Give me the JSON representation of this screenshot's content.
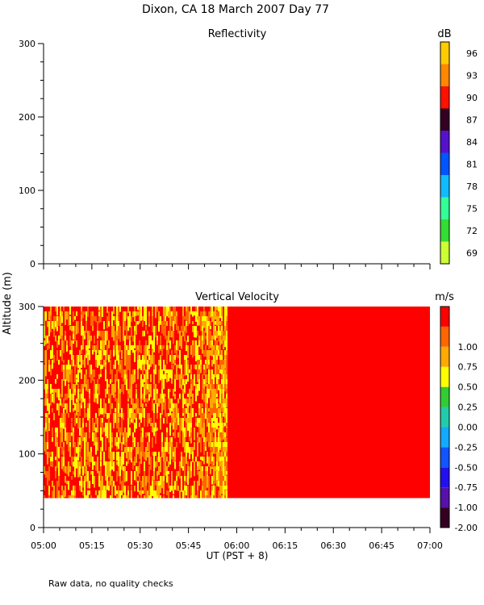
{
  "title": "Dixon, CA 18 March 2007  Day  77",
  "footnote": "Raw data, no quality checks",
  "y_axis_label": "Altitude (m)",
  "x_axis_label": "UT  (PST + 8)",
  "chart_data": [
    {
      "type": "heatmap",
      "title": "Reflectivity",
      "colorbar_unit": "dB",
      "x_ticks": [
        "05:00",
        "05:15",
        "05:30",
        "05:45",
        "06:00",
        "06:15",
        "06:30",
        "06:45",
        "07:00"
      ],
      "ylim": [
        0,
        300
      ],
      "y_ticks": [
        0,
        100,
        200,
        300
      ],
      "colorbar": [
        {
          "label": "69",
          "color": "#ccff33"
        },
        {
          "label": "72",
          "color": "#33dd33"
        },
        {
          "label": "75",
          "color": "#33ff99"
        },
        {
          "label": "78",
          "color": "#11bbff"
        },
        {
          "label": "81",
          "color": "#0055ff"
        },
        {
          "label": "84",
          "color": "#5511cc"
        },
        {
          "label": "87",
          "color": "#330022"
        },
        {
          "label": "90",
          "color": "#ff1100"
        },
        {
          "label": "93",
          "color": "#ff8800"
        },
        {
          "label": "96",
          "color": "#ffcc00"
        }
      ],
      "data_present": false
    },
    {
      "type": "heatmap",
      "title": "Vertical Velocity",
      "colorbar_unit": "m/s",
      "x_ticks": [
        "05:00",
        "05:15",
        "05:30",
        "05:45",
        "06:00",
        "06:15",
        "06:30",
        "06:45",
        "07:00"
      ],
      "ylim": [
        0,
        300
      ],
      "y_ticks": [
        0,
        100,
        200,
        300
      ],
      "colorbar": [
        {
          "label": "-2.00",
          "color": "#330022"
        },
        {
          "label": "-1.00",
          "color": "#5511aa"
        },
        {
          "label": "-0.75",
          "color": "#2211ee"
        },
        {
          "label": "-0.50",
          "color": "#1155ff"
        },
        {
          "label": "-0.25",
          "color": "#11aaff"
        },
        {
          "label": "0.00",
          "color": "#22ccaa"
        },
        {
          "label": "0.25",
          "color": "#33cc33"
        },
        {
          "label": "0.50",
          "color": "#ffff00"
        },
        {
          "label": "0.75",
          "color": "#ffaa00"
        },
        {
          "label": "1.00",
          "color": "#ff6600"
        },
        {
          "label": "",
          "color": "#ff0000"
        }
      ],
      "data_altitude_range": [
        40,
        300
      ],
      "data_time_range": [
        "05:00",
        "07:00"
      ],
      "regions": [
        {
          "from": "05:00",
          "to": "05:55",
          "description": "mixed",
          "colors": [
            "#ff0000",
            "#ff6600",
            "#ffaa00",
            "#ffff00"
          ]
        },
        {
          "from": "05:55",
          "to": "07:00",
          "colors": [
            "#ff0000"
          ]
        }
      ]
    }
  ]
}
